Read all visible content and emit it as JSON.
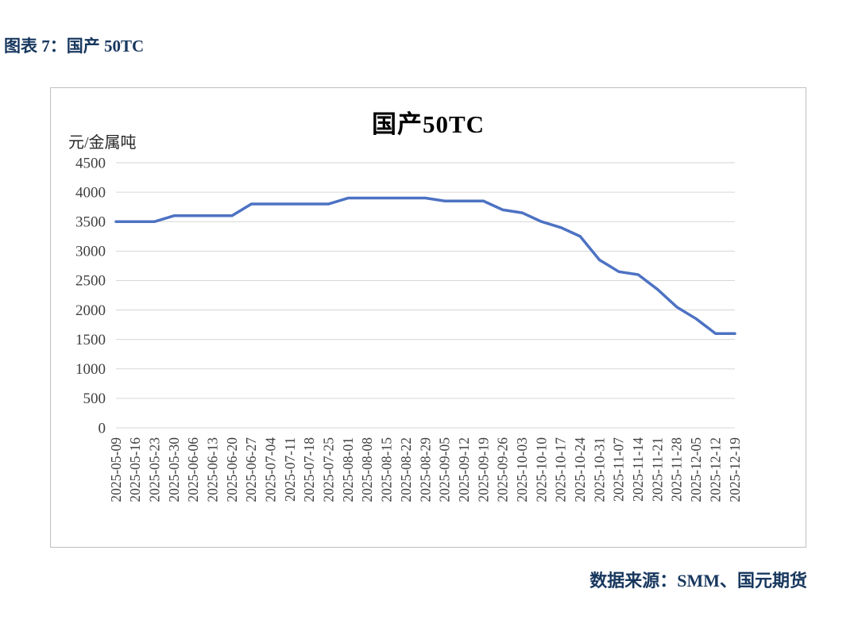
{
  "page": {
    "caption": "图表 7：国产 50TC",
    "source": "数据来源：SMM、国元期货"
  },
  "chart_data": {
    "type": "line",
    "title": "国产50TC",
    "ylabel": "元/金属吨",
    "xlabel": "",
    "categories": [
      "2025-05-09",
      "2025-05-16",
      "2025-05-23",
      "2025-05-30",
      "2025-06-06",
      "2025-06-13",
      "2025-06-20",
      "2025-06-27",
      "2025-07-04",
      "2025-07-11",
      "2025-07-18",
      "2025-07-25",
      "2025-08-01",
      "2025-08-08",
      "2025-08-15",
      "2025-08-22",
      "2025-08-29",
      "2025-09-05",
      "2025-09-12",
      "2025-09-19",
      "2025-09-26",
      "2025-10-03",
      "2025-10-10",
      "2025-10-17",
      "2025-10-24",
      "2025-10-31",
      "2025-11-07",
      "2025-11-14",
      "2025-11-21",
      "2025-11-28",
      "2025-12-05",
      "2025-12-12",
      "2025-12-19"
    ],
    "values": [
      3500,
      3500,
      3500,
      3600,
      3600,
      3600,
      3600,
      3800,
      3800,
      3800,
      3800,
      3800,
      3900,
      3900,
      3900,
      3900,
      3900,
      3850,
      3850,
      3850,
      3700,
      3650,
      3500,
      3400,
      3250,
      2850,
      2650,
      2600,
      2350,
      2050,
      1850,
      1600,
      1600
    ],
    "ylim": [
      0,
      4500
    ],
    "ytick_step": 500,
    "grid": true,
    "legend": "none",
    "line_color": "#4D72C3",
    "colors": {
      "accent_navy": "#17375E",
      "grid": "#D6D6D6",
      "axis_text": "#404040",
      "box_border": "#BFBFBF"
    }
  }
}
